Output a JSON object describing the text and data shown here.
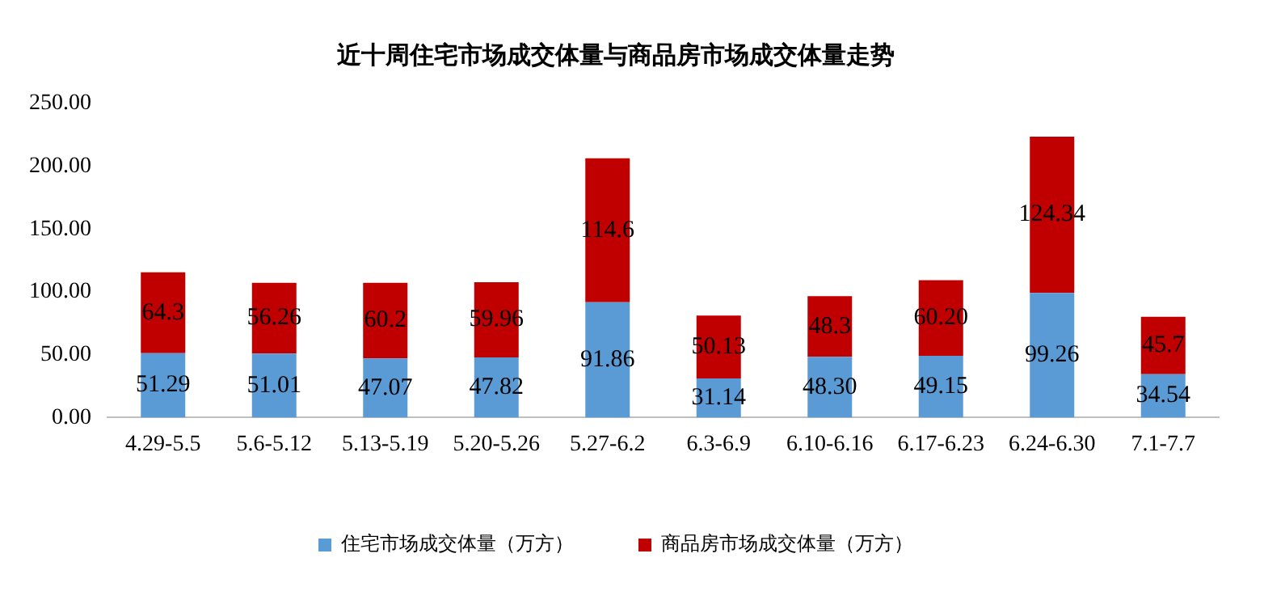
{
  "chart_data": {
    "type": "bar",
    "title": "近十周住宅市场成交体量与商品房市场成交体量走势",
    "stacked": true,
    "legend": "bottom",
    "grid": false,
    "categories": [
      "4.29-5.5",
      "5.6-5.12",
      "5.13-5.19",
      "5.20-5.26",
      "5.27-6.2",
      "6.3-6.9",
      "6.10-6.16",
      "6.17-6.23",
      "6.24-6.30",
      "7.1-7.7"
    ],
    "series": [
      {
        "name": "住宅市场成交体量（万方）",
        "color": "#5b9bd5",
        "values": [
          51.29,
          51.01,
          47.07,
          47.82,
          91.86,
          31.14,
          48.3,
          49.15,
          99.26,
          34.54
        ],
        "value_labels": [
          "51.29",
          "51.01",
          "47.07",
          "47.82",
          "91.86",
          "31.14",
          "48.30",
          "49.15",
          "99.26",
          "34.54"
        ]
      },
      {
        "name": "商品房市场成交体量（万方）",
        "color": "#c00000",
        "values": [
          64.3,
          56.26,
          60.2,
          59.96,
          114.6,
          50.13,
          48.3,
          60.2,
          124.34,
          45.7
        ],
        "value_labels": [
          "64.3",
          "56.26",
          "60.2",
          "59.96",
          "114.6",
          "50.13",
          "48.3",
          "60.20",
          "124.34",
          "45.7"
        ]
      }
    ],
    "ylim": [
      0,
      250
    ],
    "yticks": [
      {
        "value": 0,
        "label": "0.00"
      },
      {
        "value": 50,
        "label": "50.00"
      },
      {
        "value": 100,
        "label": "100.00"
      },
      {
        "value": 150,
        "label": "150.00"
      },
      {
        "value": 200,
        "label": "200.00"
      },
      {
        "value": 250,
        "label": "250.00"
      }
    ]
  }
}
